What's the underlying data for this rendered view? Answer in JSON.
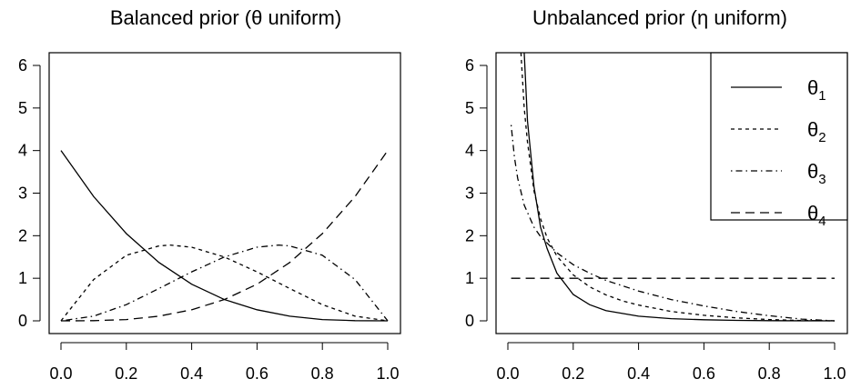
{
  "chart_data": [
    {
      "type": "line",
      "title": "Balanced prior (θ uniform)",
      "xlabel": "",
      "ylabel": "",
      "xlim": [
        0,
        1
      ],
      "ylim": [
        0,
        6
      ],
      "x_ticks": [
        "0.0",
        "0.2",
        "0.4",
        "0.6",
        "0.8",
        "1.0"
      ],
      "y_ticks": [
        "0",
        "1",
        "2",
        "3",
        "4",
        "5",
        "6"
      ],
      "grid": false,
      "series": [
        {
          "dash": "solid",
          "x": [
            0,
            0.1,
            0.2,
            0.3,
            0.4,
            0.5,
            0.6,
            0.7,
            0.8,
            0.9,
            1.0
          ],
          "y": [
            4.0,
            2.92,
            2.05,
            1.37,
            0.86,
            0.5,
            0.26,
            0.11,
            0.03,
            0.004,
            0
          ]
        },
        {
          "dash": "short-dash",
          "x": [
            0,
            0.1,
            0.2,
            0.3,
            0.333,
            0.4,
            0.5,
            0.6,
            0.7,
            0.8,
            0.9,
            1.0
          ],
          "y": [
            0,
            0.97,
            1.54,
            1.76,
            1.78,
            1.73,
            1.5,
            1.15,
            0.76,
            0.38,
            0.11,
            0
          ]
        },
        {
          "dash": "dot-dash",
          "x": [
            0,
            0.1,
            0.2,
            0.3,
            0.4,
            0.5,
            0.6,
            0.667,
            0.7,
            0.8,
            0.9,
            1.0
          ],
          "y": [
            0,
            0.11,
            0.38,
            0.76,
            1.15,
            1.5,
            1.73,
            1.78,
            1.76,
            1.54,
            0.97,
            0
          ]
        },
        {
          "dash": "long-dash",
          "x": [
            0,
            0.1,
            0.2,
            0.3,
            0.4,
            0.5,
            0.6,
            0.7,
            0.8,
            0.9,
            1.0
          ],
          "y": [
            0,
            0.004,
            0.03,
            0.11,
            0.26,
            0.5,
            0.86,
            1.37,
            2.05,
            2.92,
            4.0
          ]
        }
      ]
    },
    {
      "type": "line",
      "title": "Unbalanced prior (η uniform)",
      "xlabel": "",
      "ylabel": "",
      "xlim": [
        0,
        1
      ],
      "ylim": [
        0,
        6
      ],
      "x_ticks": [
        "0.0",
        "0.2",
        "0.4",
        "0.6",
        "0.8",
        "1.0"
      ],
      "y_ticks": [
        "0",
        "1",
        "2",
        "3",
        "4",
        "5",
        "6"
      ],
      "grid": false,
      "legend": {
        "position": "top-right",
        "entries": [
          {
            "symbol": "θ",
            "sub": "1",
            "dash": "solid"
          },
          {
            "symbol": "θ",
            "sub": "2",
            "dash": "short-dash"
          },
          {
            "symbol": "θ",
            "sub": "3",
            "dash": "dot-dash"
          },
          {
            "symbol": "θ",
            "sub": "4",
            "dash": "long-dash"
          }
        ]
      },
      "series": [
        {
          "dash": "solid",
          "x": [
            0.05,
            0.06,
            0.08,
            0.1,
            0.12,
            0.15,
            0.2,
            0.25,
            0.3,
            0.4,
            0.5,
            0.6,
            0.7,
            0.8,
            0.9,
            1.0
          ],
          "y": [
            6.3,
            4.7,
            3.15,
            2.2,
            1.7,
            1.12,
            0.62,
            0.38,
            0.24,
            0.11,
            0.05,
            0.025,
            0.01,
            0.004,
            0.001,
            0
          ]
        },
        {
          "dash": "short-dash",
          "x": [
            0.04,
            0.05,
            0.06,
            0.08,
            0.1,
            0.12,
            0.15,
            0.2,
            0.25,
            0.3,
            0.35,
            0.4,
            0.5,
            0.6,
            0.7,
            0.8,
            0.9,
            1.0
          ],
          "y": [
            6.3,
            5.0,
            4.2,
            3.05,
            2.4,
            1.95,
            1.52,
            1.08,
            0.8,
            0.61,
            0.47,
            0.37,
            0.22,
            0.13,
            0.07,
            0.03,
            0.008,
            0
          ]
        },
        {
          "dash": "dot-dash",
          "x": [
            0.01,
            0.02,
            0.03,
            0.05,
            0.08,
            0.1,
            0.15,
            0.2,
            0.25,
            0.3,
            0.4,
            0.5,
            0.6,
            0.7,
            0.8,
            0.9,
            1.0
          ],
          "y": [
            4.6,
            3.85,
            3.35,
            2.72,
            2.2,
            1.98,
            1.6,
            1.32,
            1.12,
            0.95,
            0.7,
            0.5,
            0.35,
            0.22,
            0.12,
            0.04,
            0
          ]
        },
        {
          "dash": "long-dash",
          "x": [
            0.01,
            1.0
          ],
          "y": [
            1.0,
            1.0
          ]
        }
      ]
    }
  ]
}
